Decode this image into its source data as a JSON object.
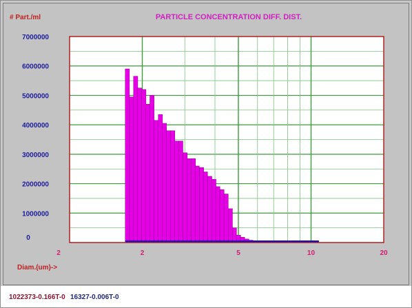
{
  "colors": {
    "panel": "#c3c3c3",
    "plot_bg": "#ffffff",
    "grid_major": "#3a9d3a",
    "grid_minor": "#7cc47c",
    "plot_border": "#b02020",
    "bar_fill": "#e600e6",
    "bar_edge": "#8a008a",
    "baseline": "#1010c0",
    "title": "#d020c0",
    "y_tick": "#1c1c9c",
    "x_tick": "#d21c72",
    "axis_label": "#c22020"
  },
  "chart_data": {
    "type": "bar",
    "title": "PARTICLE CONCENTRATION DIFF. DIST.",
    "ylabel": "# Part./ml",
    "xlabel": "Diam.(um)->",
    "x_scale": "log",
    "xlim": [
      1,
      20
    ],
    "ylim": [
      0,
      7000000
    ],
    "grid": true,
    "y_ticks": [
      "7000000",
      "6000000",
      "5000000",
      "4000000",
      "3000000",
      "2000000",
      "1000000",
      "0"
    ],
    "x_ticks": [
      "2",
      "2",
      "5",
      "10",
      "20"
    ],
    "x": [
      1.7,
      1.77,
      1.84,
      1.91,
      1.99,
      2.07,
      2.15,
      2.24,
      2.33,
      2.42,
      2.52,
      2.62,
      2.72,
      2.83,
      2.95,
      3.06,
      3.19,
      3.31,
      3.45,
      3.58,
      3.73,
      3.88,
      4.03,
      4.19,
      4.36,
      4.54,
      4.72,
      4.91,
      5.1,
      5.31,
      5.52,
      5.74,
      5.97,
      6.21,
      6.46,
      6.72,
      6.99,
      7.27,
      7.56,
      7.86,
      8.18,
      8.5,
      8.84,
      9.2,
      9.57,
      9.95,
      10.35
    ],
    "values": [
      5900000,
      4950000,
      5650000,
      5250000,
      5200000,
      4700000,
      5000000,
      4150000,
      4350000,
      4050000,
      3800000,
      3800000,
      3450000,
      3450000,
      3050000,
      2850000,
      2850000,
      2600000,
      2550000,
      2400000,
      2250000,
      2150000,
      1900000,
      1800000,
      1650000,
      1150000,
      500000,
      250000,
      180000,
      120000,
      80000,
      50000,
      30000,
      20000,
      15000,
      10000,
      8000,
      6000,
      5000,
      4000,
      3000,
      2000,
      1500,
      1000,
      800,
      500,
      0
    ]
  },
  "footer": {
    "code_1": "1022373-0.166T-0",
    "code_2": "16327-0.006T-0"
  }
}
